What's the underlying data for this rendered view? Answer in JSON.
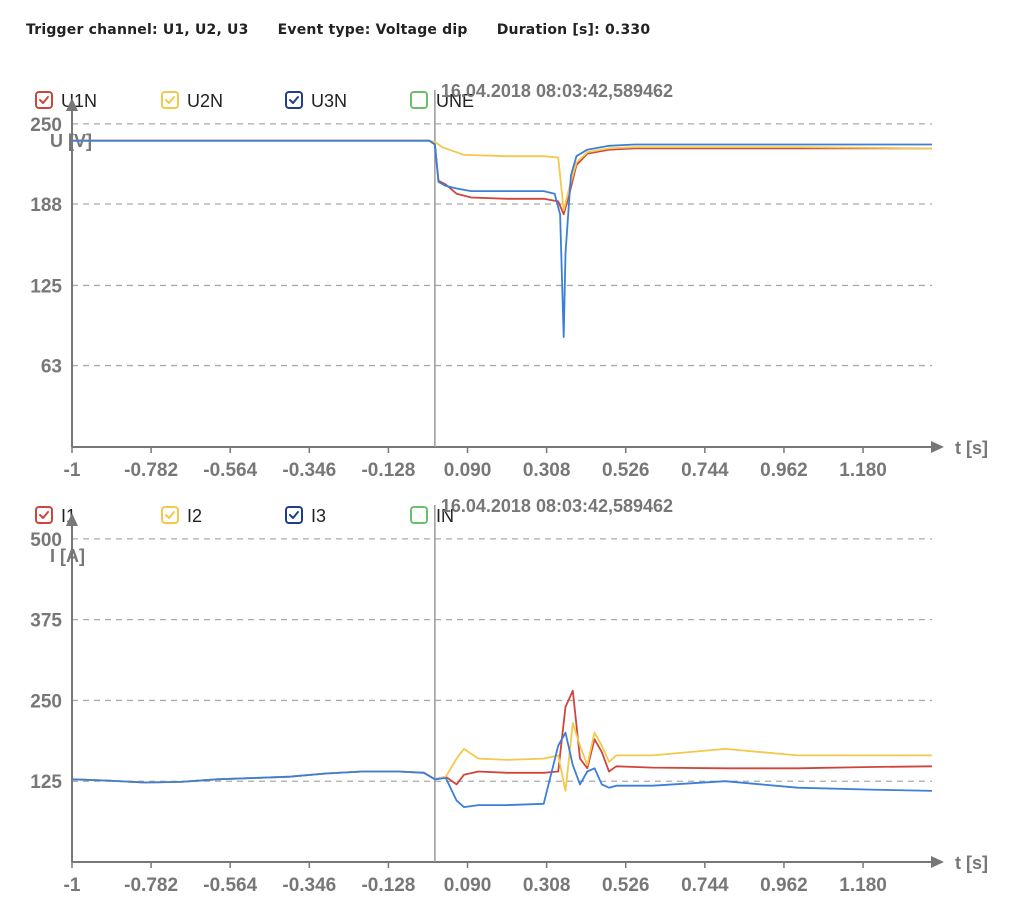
{
  "header": {
    "trigger_channel": "Trigger channel: U1, U2, U3",
    "event_type": "Event type: Voltage dip",
    "duration": "Duration [s]: 0.330"
  },
  "colors": {
    "red": "#d0453b",
    "yellow": "#f2c94c",
    "blue": "#3b7fd9",
    "navy": "#1f3f8c",
    "green": "#6abf69",
    "axis": "#777777",
    "grid": "#aaaaaa"
  },
  "chart_data": [
    {
      "type": "line",
      "title": "",
      "ylabel": "U [V]",
      "xlabel": "t [s]",
      "marker_label": "16.04.2018 08:03:42,589462",
      "marker_x": 0,
      "xlim": [
        -1,
        1.37
      ],
      "ylim": [
        0,
        270
      ],
      "y_ticks": [
        63,
        125,
        188,
        250
      ],
      "y_tick_labels": [
        "63",
        "125",
        "188",
        "250"
      ],
      "x_ticks": [
        -1,
        -0.782,
        -0.564,
        -0.346,
        -0.128,
        0.09,
        0.308,
        0.526,
        0.744,
        0.962,
        1.18
      ],
      "x_tick_labels": [
        "-1",
        "-0.782",
        "-0.564",
        "-0.346",
        "-0.128",
        "0.090",
        "0.308",
        "0.526",
        "0.744",
        "0.962",
        "1.180"
      ],
      "grid": "horizontal dashed",
      "legend_position": "top-left",
      "legend": [
        {
          "name": "U1N",
          "color": "#d0453b",
          "checked": true
        },
        {
          "name": "U2N",
          "color": "#f2c94c",
          "checked": true
        },
        {
          "name": "U3N",
          "color": "#1f3f8c",
          "checked": true
        },
        {
          "name": "UNE",
          "color": "#6abf69",
          "checked": false
        }
      ],
      "series": [
        {
          "name": "U1N",
          "color": "#d0453b",
          "x": [
            -1,
            -0.5,
            -0.1,
            -0.015,
            0,
            0.01,
            0.03,
            0.06,
            0.1,
            0.2,
            0.3,
            0.34,
            0.355,
            0.37,
            0.39,
            0.42,
            0.48,
            0.55,
            0.7,
            1.0,
            1.37
          ],
          "y": [
            237,
            237,
            237,
            237,
            234,
            206,
            203,
            196,
            193,
            192,
            192,
            190,
            180,
            195,
            218,
            227,
            230,
            231,
            231,
            231,
            231
          ]
        },
        {
          "name": "U2N",
          "color": "#f2c94c",
          "x": [
            -1,
            -0.5,
            -0.1,
            -0.015,
            0,
            0.02,
            0.04,
            0.08,
            0.2,
            0.3,
            0.34,
            0.355,
            0.37,
            0.39,
            0.42,
            0.48,
            0.55,
            0.7,
            1.0,
            1.37
          ],
          "y": [
            237,
            237,
            237,
            237,
            236,
            232,
            230,
            226,
            225,
            225,
            224,
            183,
            200,
            220,
            228,
            231,
            232,
            232,
            232,
            231
          ]
        },
        {
          "name": "U3N",
          "color": "#3b7fd9",
          "x": [
            -1,
            -0.5,
            -0.1,
            -0.015,
            0,
            0.01,
            0.03,
            0.06,
            0.1,
            0.2,
            0.3,
            0.33,
            0.345,
            0.355,
            0.36,
            0.375,
            0.39,
            0.42,
            0.48,
            0.55,
            0.7,
            1.0,
            1.37
          ],
          "y": [
            237,
            237,
            237,
            237,
            234,
            205,
            202,
            200,
            198,
            198,
            198,
            196,
            180,
            85,
            150,
            210,
            225,
            230,
            233,
            234,
            234,
            234,
            234
          ]
        }
      ]
    },
    {
      "type": "line",
      "title": "",
      "ylabel": "I [A]",
      "xlabel": "t [s]",
      "marker_label": "16.04.2018 08:03:42,589462",
      "marker_x": 0,
      "xlim": [
        -1,
        1.37
      ],
      "ylim": [
        0,
        540
      ],
      "y_ticks": [
        125,
        250,
        375,
        500
      ],
      "y_tick_labels": [
        "125",
        "250",
        "375",
        "500"
      ],
      "x_ticks": [
        -1,
        -0.782,
        -0.564,
        -0.346,
        -0.128,
        0.09,
        0.308,
        0.526,
        0.744,
        0.962,
        1.18
      ],
      "x_tick_labels": [
        "-1",
        "-0.782",
        "-0.564",
        "-0.346",
        "-0.128",
        "0.090",
        "0.308",
        "0.526",
        "0.744",
        "0.962",
        "1.180"
      ],
      "grid": "horizontal dashed",
      "legend_position": "top-left",
      "legend": [
        {
          "name": "I1",
          "color": "#d0453b",
          "checked": true
        },
        {
          "name": "I2",
          "color": "#f2c94c",
          "checked": true
        },
        {
          "name": "I3",
          "color": "#1f3f8c",
          "checked": true
        },
        {
          "name": "IN",
          "color": "#6abf69",
          "checked": false
        }
      ],
      "series": [
        {
          "name": "I1",
          "color": "#d0453b",
          "x": [
            -1,
            -0.9,
            -0.8,
            -0.7,
            -0.6,
            -0.5,
            -0.4,
            -0.3,
            -0.2,
            -0.1,
            -0.03,
            0,
            0.03,
            0.06,
            0.08,
            0.12,
            0.2,
            0.3,
            0.34,
            0.36,
            0.38,
            0.4,
            0.42,
            0.44,
            0.46,
            0.48,
            0.5,
            0.6,
            0.8,
            1.0,
            1.2,
            1.37
          ],
          "y": [
            128,
            126,
            123,
            124,
            128,
            130,
            132,
            137,
            140,
            140,
            138,
            128,
            132,
            120,
            135,
            140,
            138,
            138,
            140,
            240,
            265,
            160,
            145,
            190,
            170,
            140,
            148,
            146,
            145,
            145,
            147,
            148
          ]
        },
        {
          "name": "I2",
          "color": "#f2c94c",
          "x": [
            -1,
            -0.9,
            -0.8,
            -0.7,
            -0.6,
            -0.5,
            -0.4,
            -0.3,
            -0.2,
            -0.1,
            -0.03,
            0,
            0.03,
            0.06,
            0.08,
            0.12,
            0.2,
            0.3,
            0.34,
            0.36,
            0.38,
            0.4,
            0.42,
            0.44,
            0.46,
            0.48,
            0.5,
            0.6,
            0.8,
            1.0,
            1.2,
            1.37
          ],
          "y": [
            128,
            126,
            123,
            124,
            128,
            130,
            132,
            137,
            140,
            140,
            138,
            128,
            132,
            160,
            175,
            160,
            158,
            160,
            165,
            110,
            215,
            180,
            150,
            200,
            180,
            155,
            165,
            165,
            175,
            165,
            165,
            165
          ]
        },
        {
          "name": "I3",
          "color": "#3b7fd9",
          "x": [
            -1,
            -0.9,
            -0.8,
            -0.7,
            -0.6,
            -0.5,
            -0.4,
            -0.3,
            -0.2,
            -0.1,
            -0.03,
            0,
            0.03,
            0.06,
            0.08,
            0.12,
            0.2,
            0.3,
            0.34,
            0.36,
            0.38,
            0.4,
            0.42,
            0.44,
            0.46,
            0.48,
            0.5,
            0.6,
            0.8,
            1.0,
            1.2,
            1.37
          ],
          "y": [
            128,
            126,
            123,
            124,
            128,
            130,
            132,
            137,
            140,
            140,
            138,
            128,
            130,
            95,
            85,
            88,
            88,
            90,
            180,
            200,
            150,
            120,
            140,
            145,
            120,
            115,
            118,
            118,
            125,
            115,
            112,
            110
          ]
        }
      ]
    }
  ]
}
